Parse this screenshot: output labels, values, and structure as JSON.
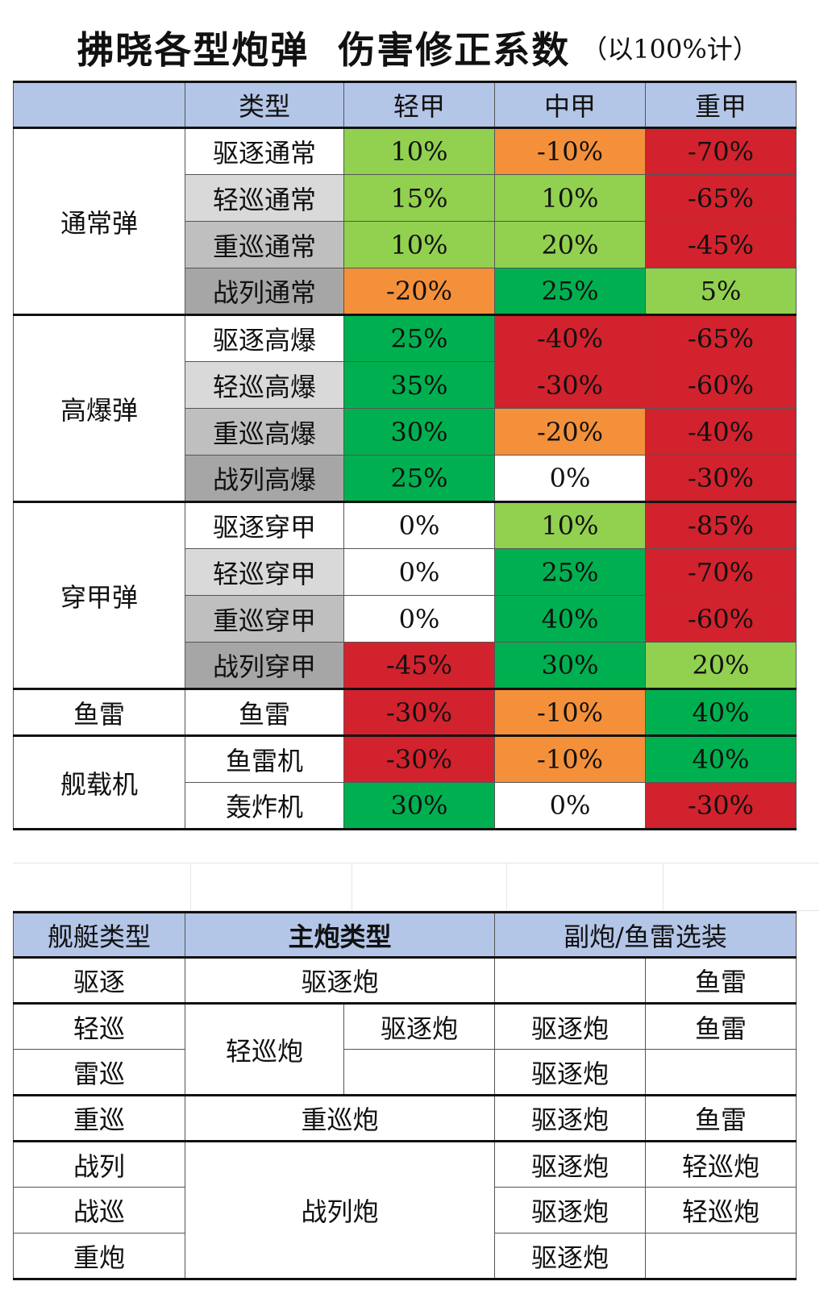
{
  "title": {
    "main": "拂晓各型炮弹  伤害修正系数",
    "note": "（以100%计）"
  },
  "damage_table": {
    "headers": [
      "",
      "类型",
      "轻甲",
      "中甲",
      "重甲"
    ],
    "groups": [
      {
        "name": "通常弹",
        "rows": [
          {
            "type": "驱逐通常",
            "light": "10%",
            "medium": "-10%",
            "heavy": "-70%"
          },
          {
            "type": "轻巡通常",
            "light": "15%",
            "medium": "10%",
            "heavy": "-65%"
          },
          {
            "type": "重巡通常",
            "light": "10%",
            "medium": "20%",
            "heavy": "-45%"
          },
          {
            "type": "战列通常",
            "light": "-20%",
            "medium": "25%",
            "heavy": "5%"
          }
        ]
      },
      {
        "name": "高爆弹",
        "rows": [
          {
            "type": "驱逐高爆",
            "light": "25%",
            "medium": "-40%",
            "heavy": "-65%"
          },
          {
            "type": "轻巡高爆",
            "light": "35%",
            "medium": "-30%",
            "heavy": "-60%"
          },
          {
            "type": "重巡高爆",
            "light": "30%",
            "medium": "-20%",
            "heavy": "-40%"
          },
          {
            "type": "战列高爆",
            "light": "25%",
            "medium": "0%",
            "heavy": "-30%"
          }
        ]
      },
      {
        "name": "穿甲弹",
        "rows": [
          {
            "type": "驱逐穿甲",
            "light": "0%",
            "medium": "10%",
            "heavy": "-85%"
          },
          {
            "type": "轻巡穿甲",
            "light": "0%",
            "medium": "25%",
            "heavy": "-70%"
          },
          {
            "type": "重巡穿甲",
            "light": "0%",
            "medium": "40%",
            "heavy": "-60%"
          },
          {
            "type": "战列穿甲",
            "light": "-45%",
            "medium": "30%",
            "heavy": "20%"
          }
        ]
      },
      {
        "name": "鱼雷",
        "rows": [
          {
            "type": "鱼雷",
            "light": "-30%",
            "medium": "-10%",
            "heavy": "40%"
          }
        ]
      },
      {
        "name": "舰载机",
        "rows": [
          {
            "type": "鱼雷机",
            "light": "-30%",
            "medium": "-10%",
            "heavy": "40%"
          },
          {
            "type": "轰炸机",
            "light": "30%",
            "medium": "0%",
            "heavy": "-30%"
          }
        ]
      }
    ],
    "colors": {
      "light_green": "#92d050",
      "dark_green": "#00b050",
      "orange": "#f4903a",
      "red": "#d2222d",
      "header_blue": "#b4c6e7"
    }
  },
  "loadout_table": {
    "headers": [
      "舰艇类型",
      "主炮类型",
      "副炮/鱼雷选装"
    ],
    "ships": [
      "驱逐",
      "轻巡",
      "雷巡",
      "重巡",
      "战列",
      "战巡",
      "重炮"
    ],
    "main_guns": {
      "destroyer": "驱逐炮",
      "light_cruiser": "轻巡炮",
      "heavy_cruiser": "重巡炮",
      "battleship": "战列炮"
    },
    "light_cruiser_secondary_main": "驱逐炮",
    "options": {
      "destroyer": [
        "",
        "鱼雷"
      ],
      "light_cruiser": [
        "驱逐炮",
        "鱼雷"
      ],
      "torpedo_cruiser": [
        "驱逐炮",
        ""
      ],
      "heavy_cruiser": [
        "驱逐炮",
        "鱼雷"
      ],
      "battleship": [
        "驱逐炮",
        "轻巡炮"
      ],
      "battlecruiser": [
        "驱逐炮",
        "轻巡炮"
      ],
      "heavy_gun": [
        "驱逐炮",
        ""
      ]
    }
  }
}
